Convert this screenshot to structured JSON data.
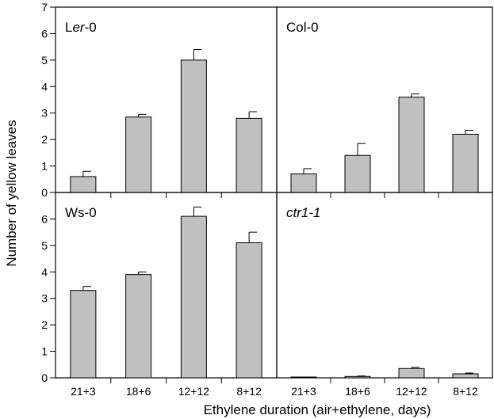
{
  "figure": {
    "ylabel": "Number of yellow leaves",
    "xlabel": "Ethylene duration (air+ethylene, days)"
  },
  "chart_data": [
    {
      "type": "bar",
      "panel_label": "Ler-0",
      "panel_label_parts": [
        {
          "text": "L",
          "italic": false
        },
        {
          "text": "er",
          "italic": true
        },
        {
          "text": "-0",
          "italic": false
        }
      ],
      "categories": [
        "21+3",
        "18+6",
        "12+12",
        "8+12"
      ],
      "values": [
        0.6,
        2.85,
        5.0,
        2.8
      ],
      "errors": [
        0.2,
        0.1,
        0.4,
        0.25
      ],
      "ylim": [
        0,
        7
      ],
      "yticks": [
        0,
        1,
        2,
        3,
        4,
        5,
        6,
        7
      ],
      "show_yticks": true,
      "show_xticks": false
    },
    {
      "type": "bar",
      "panel_label": "Col-0",
      "panel_label_parts": [
        {
          "text": "Col-0",
          "italic": false
        }
      ],
      "categories": [
        "21+3",
        "18+6",
        "12+12",
        "8+12"
      ],
      "values": [
        0.7,
        1.4,
        3.6,
        2.2
      ],
      "errors": [
        0.2,
        0.45,
        0.12,
        0.15
      ],
      "ylim": [
        0,
        7
      ],
      "yticks": [
        0,
        1,
        2,
        3,
        4,
        5,
        6,
        7
      ],
      "show_yticks": false,
      "show_xticks": false
    },
    {
      "type": "bar",
      "panel_label": "Ws-0",
      "panel_label_parts": [
        {
          "text": "Ws-0",
          "italic": false
        }
      ],
      "categories": [
        "21+3",
        "18+6",
        "12+12",
        "8+12"
      ],
      "values": [
        3.3,
        3.9,
        6.1,
        5.1
      ],
      "errors": [
        0.15,
        0.1,
        0.35,
        0.4
      ],
      "ylim": [
        0,
        7
      ],
      "yticks": [
        0,
        1,
        2,
        3,
        4,
        5,
        6
      ],
      "show_yticks": true,
      "show_xticks": true
    },
    {
      "type": "bar",
      "panel_label": "ctr1-1",
      "panel_label_parts": [
        {
          "text": "ctr1-1",
          "italic": true
        }
      ],
      "categories": [
        "21+3",
        "18+6",
        "12+12",
        "8+12"
      ],
      "values": [
        0.0,
        0.05,
        0.35,
        0.15
      ],
      "errors": [
        0.0,
        0.02,
        0.05,
        0.03
      ],
      "ylim": [
        0,
        7
      ],
      "yticks": [
        0,
        1,
        2,
        3,
        4,
        5,
        6
      ],
      "show_yticks": false,
      "show_xticks": true
    }
  ]
}
